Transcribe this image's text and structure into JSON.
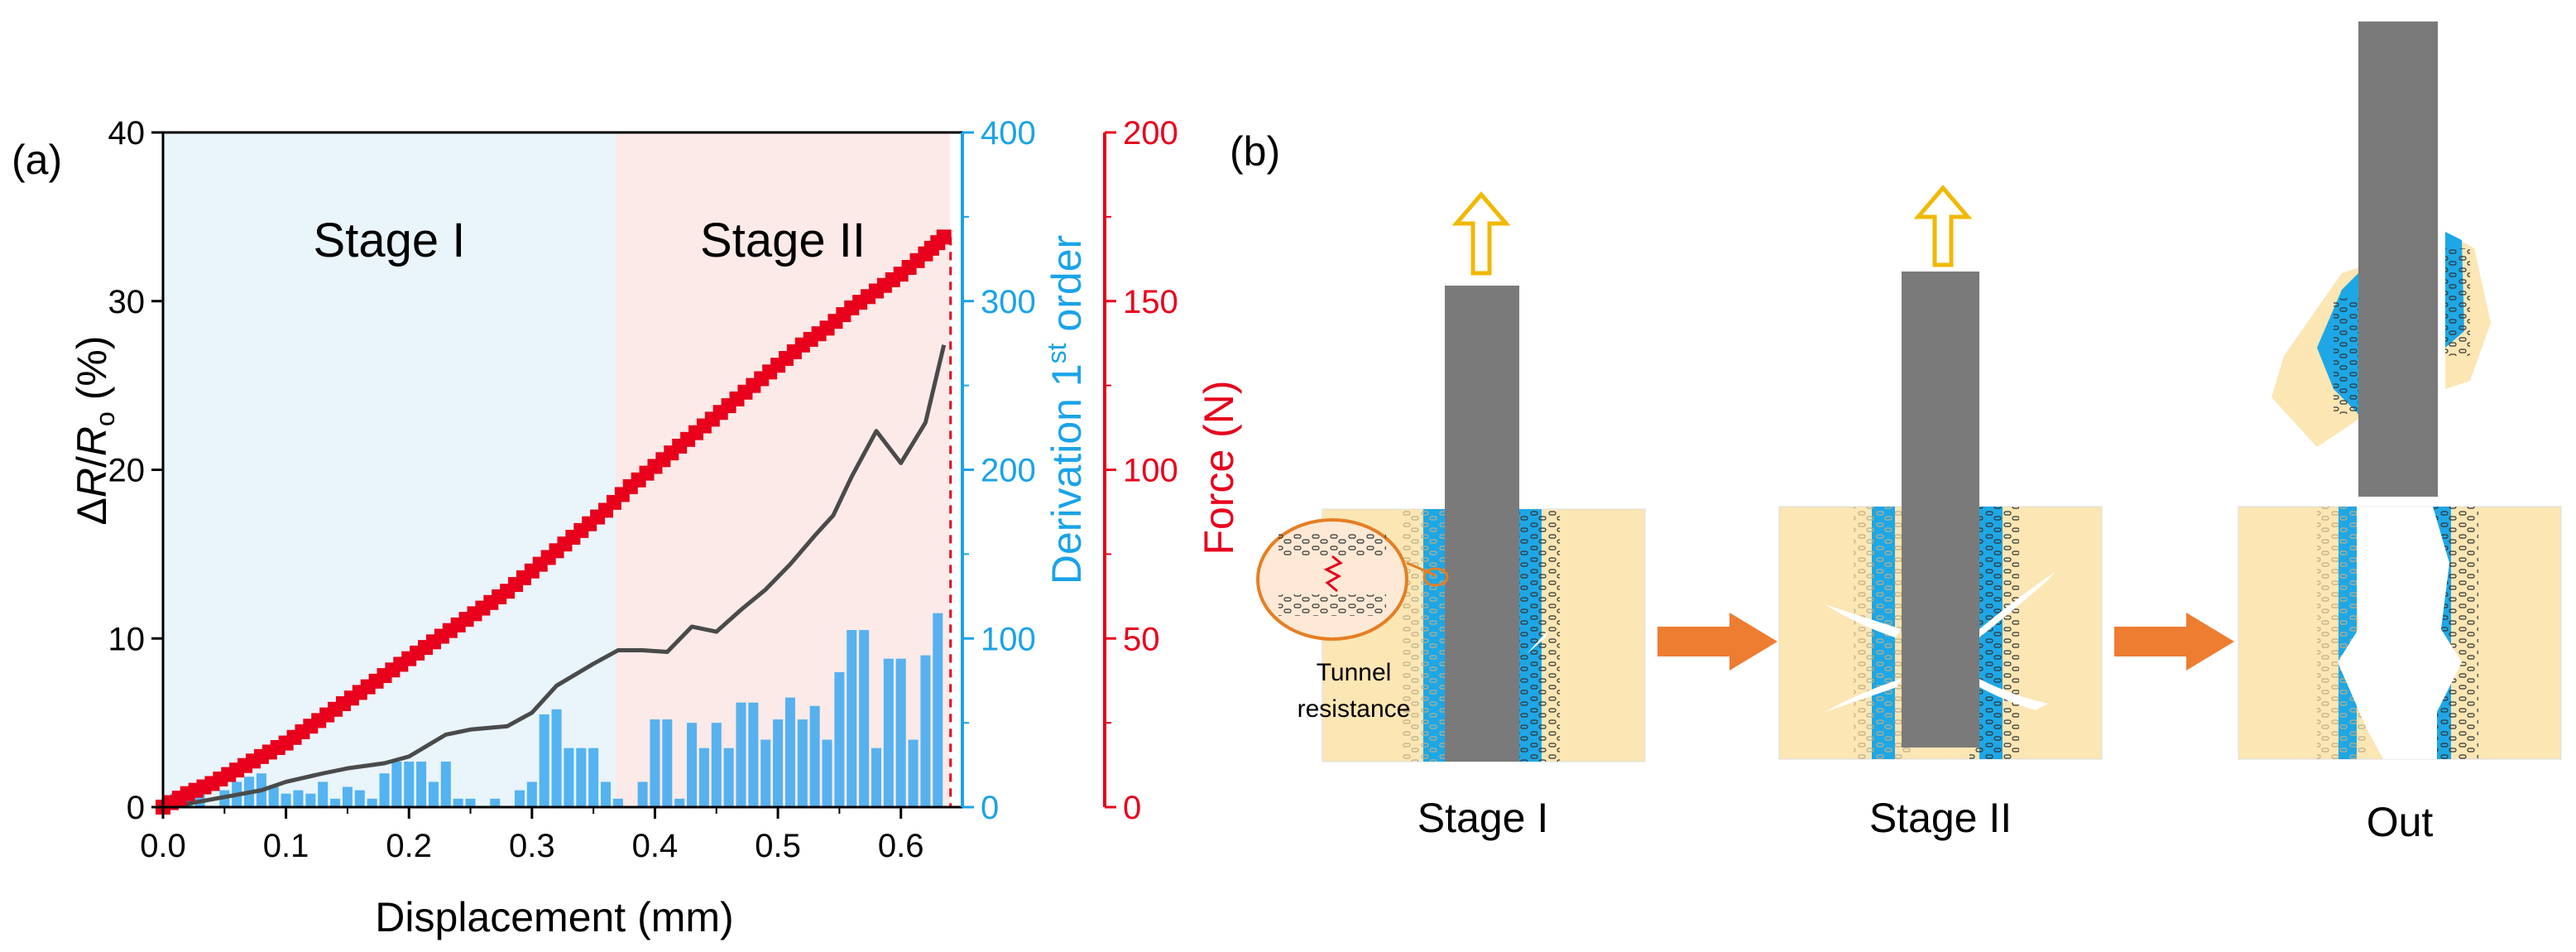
{
  "panel_a_label": "(a)",
  "panel_b_label": "(b)",
  "chart_data": {
    "type": "line",
    "x_axis": {
      "label": "Displacement (mm)",
      "range": [
        0.0,
        0.65
      ],
      "ticks": [
        0.0,
        0.1,
        0.2,
        0.3,
        0.4,
        0.5,
        0.6
      ],
      "tick_labels": [
        "0.0",
        "0.1",
        "0.2",
        "0.3",
        "0.4",
        "0.5",
        "0.6"
      ]
    },
    "left_axis": {
      "label_delta": "Δ",
      "label_R": "R",
      "label_slash": "/",
      "label_R0": "R",
      "label_R0_sub": "o",
      "label_unit": " (%)",
      "range": [
        0,
        40
      ],
      "ticks": [
        0,
        10,
        20,
        30,
        40
      ],
      "tick_labels": [
        "0",
        "10",
        "20",
        "30",
        "40"
      ],
      "color": "#000000"
    },
    "right_axis_1": {
      "label_main": "Derivation 1",
      "label_sup": "st",
      "label_end": " order",
      "range": [
        0,
        400
      ],
      "ticks": [
        0,
        100,
        200,
        300,
        400
      ],
      "tick_labels": [
        "0",
        "100",
        "200",
        "300",
        "400"
      ],
      "color": "#1aa3e8"
    },
    "right_axis_2": {
      "label": "Force (N)",
      "range": [
        0,
        200
      ],
      "ticks": [
        0,
        50,
        100,
        150,
        200
      ],
      "tick_labels": [
        "0",
        "50",
        "100",
        "150",
        "200"
      ],
      "color": "#e8001c"
    },
    "regions": [
      {
        "label": "Stage I",
        "x_start": 0.0,
        "x_end": 0.368,
        "color": "#e9f4fb"
      },
      {
        "label": "Stage II",
        "x_start": 0.368,
        "x_end": 0.64,
        "color": "#fbeae8"
      }
    ],
    "series": [
      {
        "name": "ΔR/Ro",
        "axis": "left",
        "style": "line",
        "color": "#4a4a4a",
        "x": [
          0.0,
          0.02,
          0.05,
          0.08,
          0.1,
          0.13,
          0.15,
          0.18,
          0.2,
          0.23,
          0.25,
          0.28,
          0.3,
          0.32,
          0.35,
          0.37,
          0.39,
          0.41,
          0.43,
          0.45,
          0.47,
          0.49,
          0.51,
          0.53,
          0.545,
          0.56,
          0.58,
          0.6,
          0.62,
          0.635
        ],
        "y": [
          0.0,
          0.2,
          0.6,
          1.0,
          1.5,
          2.0,
          2.3,
          2.6,
          3.0,
          4.3,
          4.6,
          4.8,
          5.6,
          7.2,
          8.5,
          9.3,
          9.3,
          9.2,
          10.7,
          10.4,
          11.7,
          12.9,
          14.4,
          16.1,
          17.3,
          19.6,
          22.3,
          20.4,
          22.8,
          27.4
        ]
      },
      {
        "name": "Force",
        "axis": "right_2",
        "style": "markers",
        "color": "#e8001c",
        "x": [
          0.0,
          0.02,
          0.04,
          0.06,
          0.08,
          0.1,
          0.12,
          0.14,
          0.16,
          0.18,
          0.2,
          0.22,
          0.24,
          0.26,
          0.28,
          0.3,
          0.32,
          0.34,
          0.36,
          0.38,
          0.4,
          0.42,
          0.44,
          0.46,
          0.48,
          0.5,
          0.52,
          0.54,
          0.56,
          0.58,
          0.6,
          0.62,
          0.635
        ],
        "y": [
          0.0,
          4.0,
          7.0,
          11.0,
          15.0,
          19.0,
          24.0,
          29.0,
          34.0,
          39.0,
          44.0,
          49.0,
          54.0,
          59.0,
          64.0,
          70.0,
          76.0,
          82.0,
          88.0,
          95.0,
          101.0,
          107.0,
          113.0,
          119.0,
          125.0,
          131.0,
          137.0,
          142.0,
          148.0,
          153.0,
          158.0,
          164.0,
          169.0
        ]
      },
      {
        "name": "Derivation 1st order",
        "axis": "right_1",
        "style": "bars",
        "color": "#3aa7ee",
        "x": [
          0.01,
          0.02,
          0.03,
          0.04,
          0.05,
          0.06,
          0.07,
          0.08,
          0.09,
          0.1,
          0.11,
          0.12,
          0.13,
          0.14,
          0.15,
          0.16,
          0.17,
          0.18,
          0.19,
          0.2,
          0.21,
          0.22,
          0.23,
          0.24,
          0.25,
          0.26,
          0.27,
          0.28,
          0.29,
          0.3,
          0.31,
          0.32,
          0.33,
          0.34,
          0.35,
          0.36,
          0.37,
          0.38,
          0.39,
          0.4,
          0.41,
          0.42,
          0.43,
          0.44,
          0.45,
          0.46,
          0.47,
          0.48,
          0.49,
          0.5,
          0.51,
          0.52,
          0.53,
          0.54,
          0.55,
          0.56,
          0.57,
          0.58,
          0.59,
          0.6,
          0.61,
          0.62,
          0.63
        ],
        "y": [
          8,
          8,
          10,
          0,
          10,
          15,
          18,
          20,
          12,
          8,
          10,
          8,
          15,
          5,
          12,
          10,
          5,
          20,
          27,
          27,
          27,
          15,
          27,
          5,
          5,
          0,
          5,
          0,
          10,
          15,
          55,
          58,
          35,
          35,
          35,
          15,
          5,
          0,
          15,
          52,
          52,
          5,
          50,
          35,
          50,
          35,
          62,
          62,
          40,
          52,
          65,
          52,
          60,
          40,
          80,
          105,
          105,
          35,
          88,
          88,
          40,
          90,
          115
        ]
      }
    ]
  },
  "schematic": {
    "stages": [
      {
        "label": "Stage I"
      },
      {
        "label": "Stage II"
      },
      {
        "label": "Out"
      }
    ],
    "inset_label_1": "Tunnel",
    "inset_label_2": "resistance",
    "colors": {
      "matrix": "#fbe6b4",
      "cnt_layer": "#1ea7e6",
      "pin": "#7a7a7a",
      "arrow": "#ed7d31",
      "pull_arrow": "#f2b800",
      "inset": "#e67e22"
    }
  }
}
